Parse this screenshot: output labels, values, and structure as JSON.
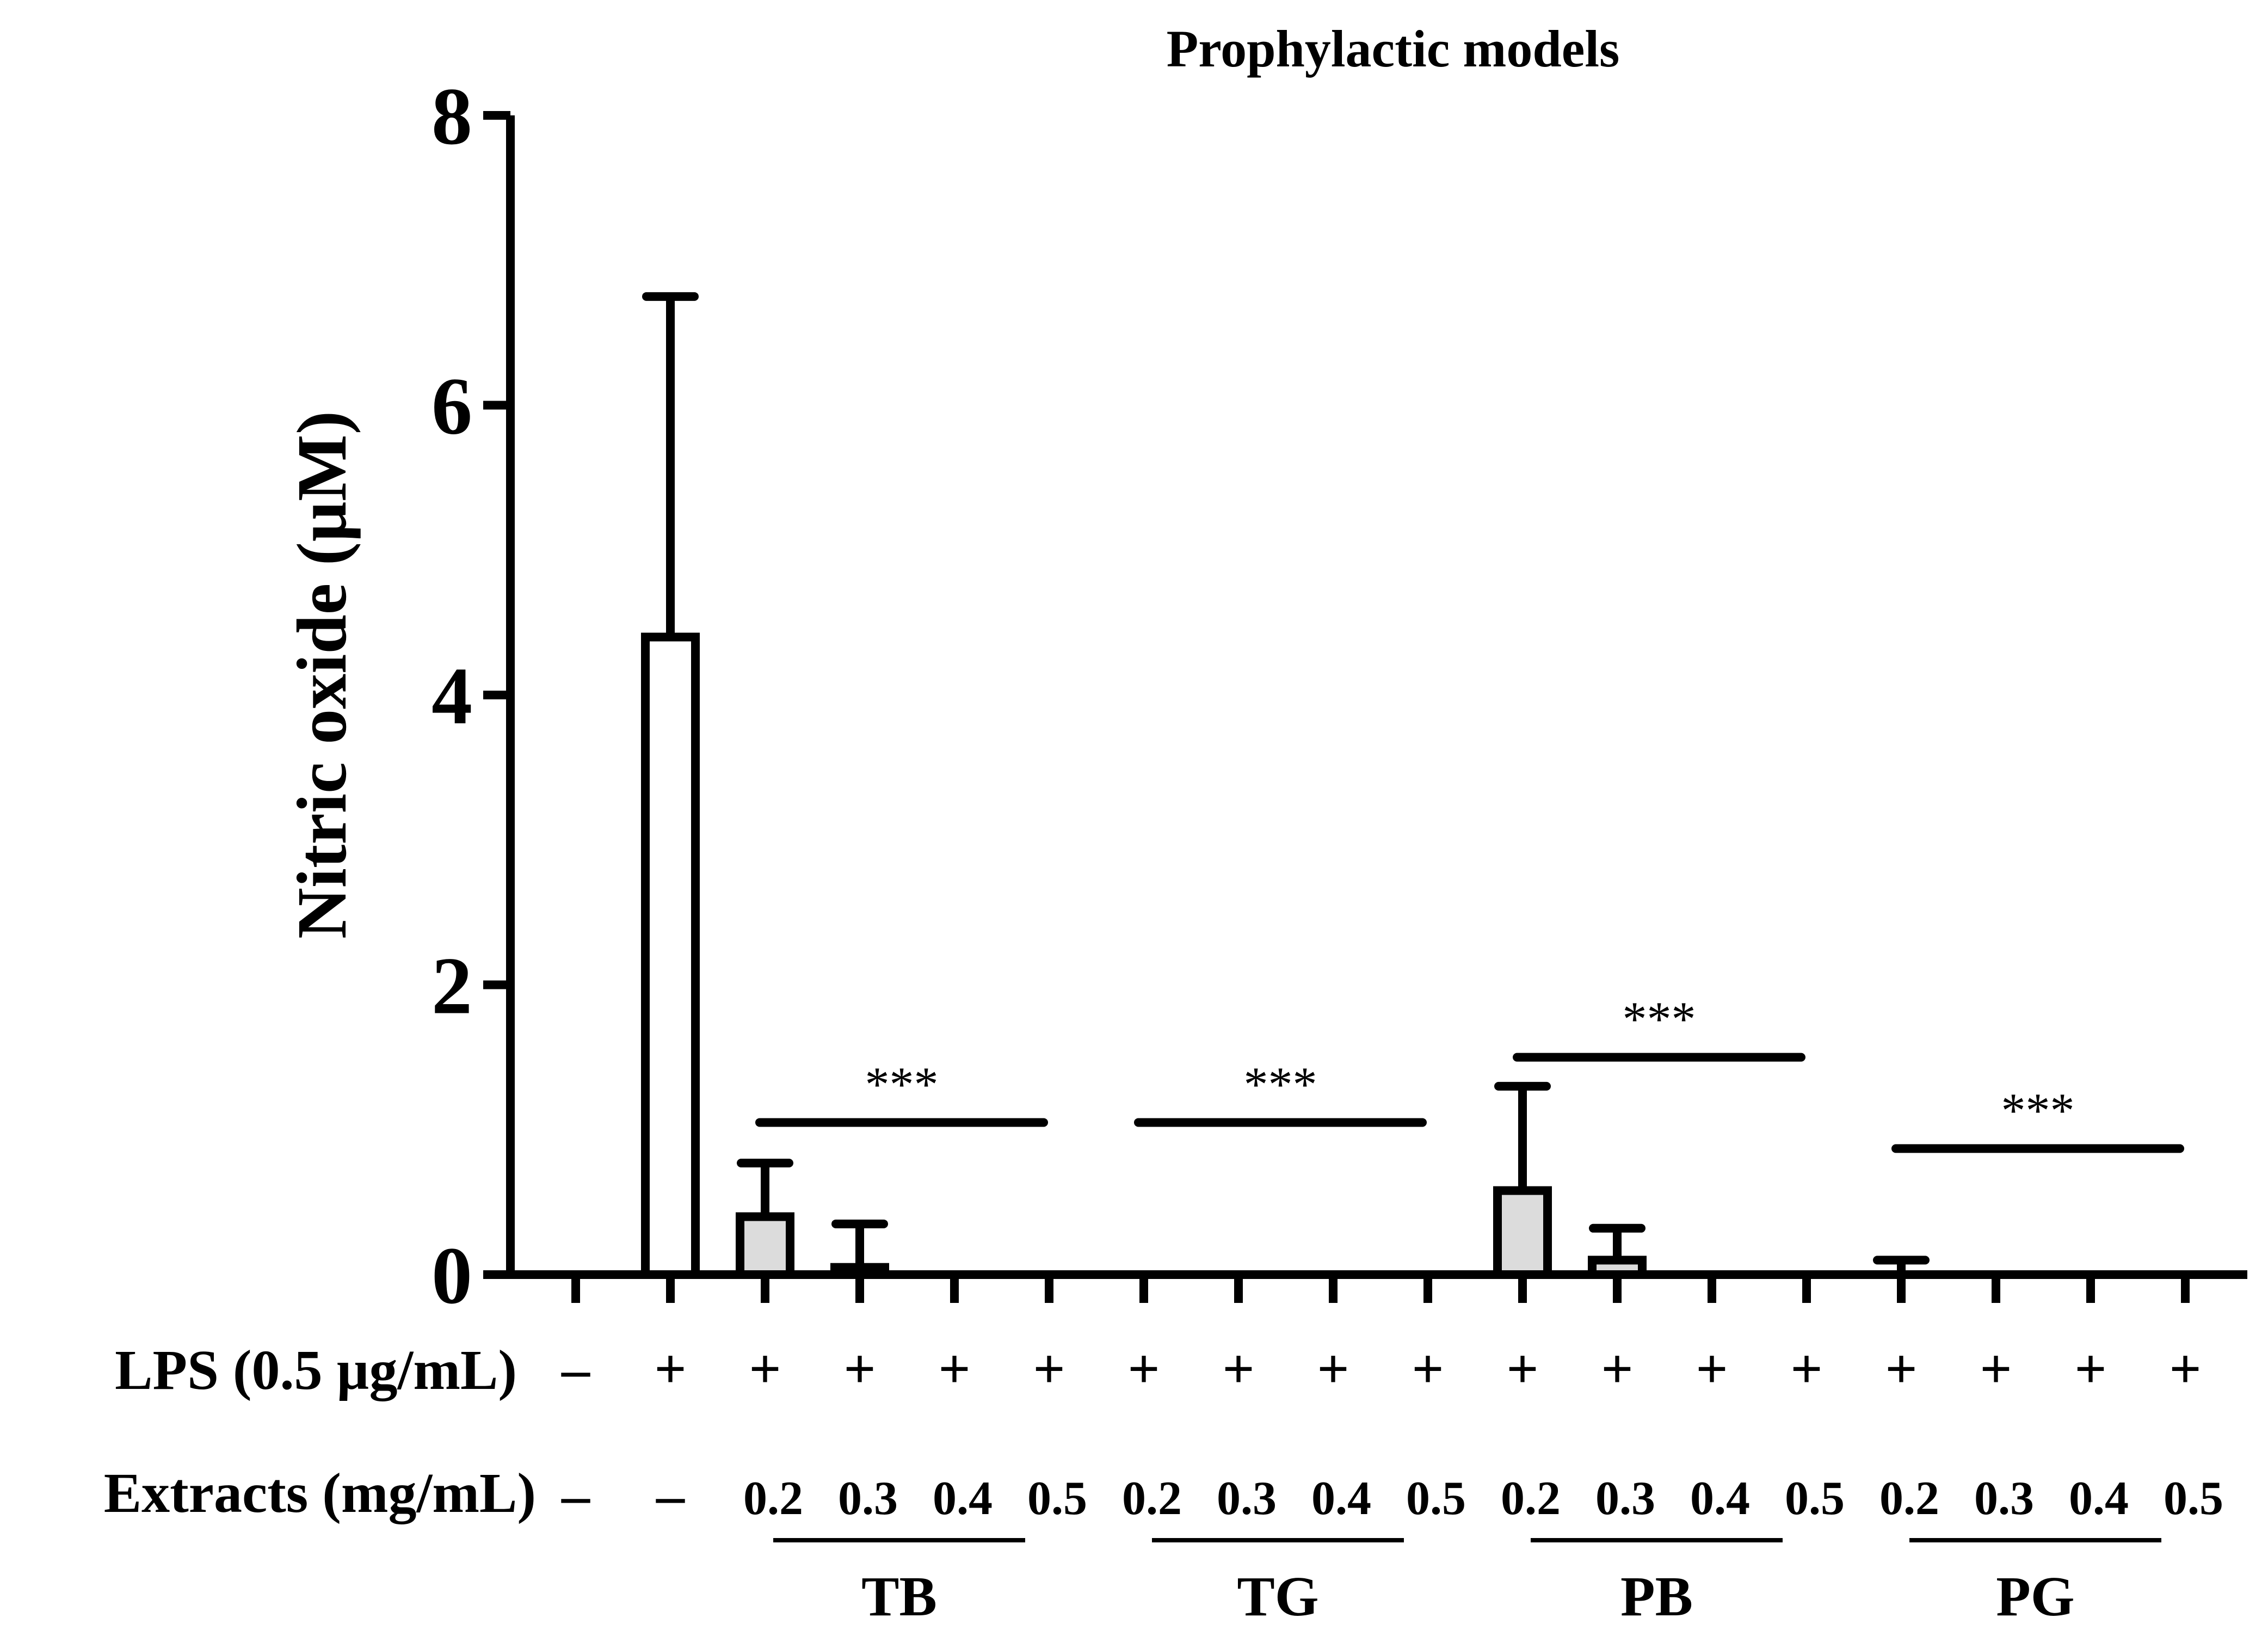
{
  "chart_data": {
    "type": "bar",
    "title": "Prophylactic models",
    "xlabel": "",
    "ylabel": "Nitric oxide (µM)",
    "ylim": [
      0,
      8
    ],
    "yticks": [
      "0",
      "2",
      "4",
      "6",
      "8"
    ],
    "row_labels": {
      "lps": "LPS (0.5 µg/mL)",
      "extracts": "Extracts (mg/mL)"
    },
    "lps_signs": [
      "–",
      "+",
      "+",
      "+",
      "+",
      "+",
      "+",
      "+",
      "+",
      "+",
      "+",
      "+",
      "+",
      "+",
      "+",
      "+",
      "+",
      "+"
    ],
    "extract_labels": [
      "–",
      "–",
      "0.2",
      "0.3",
      "0.4",
      "0.5",
      "0.2",
      "0.3",
      "0.4",
      "0.5",
      "0.2",
      "0.3",
      "0.4",
      "0.5",
      "0.2",
      "0.3",
      "0.4",
      "0.5"
    ],
    "groups": [
      {
        "name": "TB",
        "first": 2,
        "last": 5
      },
      {
        "name": "TG",
        "first": 6,
        "last": 9
      },
      {
        "name": "PB",
        "first": 10,
        "last": 13
      },
      {
        "name": "PG",
        "first": 14,
        "last": 17
      }
    ],
    "series": [
      {
        "name": "Nitric oxide",
        "values": [
          0,
          4.4,
          0.4,
          0.05,
          0,
          0,
          0,
          0,
          0,
          0,
          0.58,
          0.1,
          0,
          0,
          0,
          0,
          0,
          0
        ],
        "errors": [
          0,
          2.35,
          0.37,
          0.3,
          0,
          0,
          0,
          0,
          0,
          0,
          0.72,
          0.22,
          0,
          0,
          0,
          0,
          0,
          0.0
        ],
        "fills": [
          "#ffffff",
          "#ffffff",
          "#dcdcdc",
          "#dcdcdc",
          "#dcdcdc",
          "#dcdcdc",
          "#dcdcdc",
          "#dcdcdc",
          "#dcdcdc",
          "#dcdcdc",
          "#dcdcdc",
          "#dcdcdc",
          "#dcdcdc",
          "#dcdcdc",
          "#dcdcdc",
          "#dcdcdc",
          "#dcdcdc",
          "#dcdcdc"
        ]
      }
    ],
    "extra_error_caps": [
      {
        "index": 14,
        "value": 0.1
      }
    ],
    "significance": [
      {
        "label": "***",
        "first": 2,
        "last": 5,
        "y": 1.05
      },
      {
        "label": "***",
        "first": 6,
        "last": 9,
        "y": 1.05
      },
      {
        "label": "***",
        "first": 10,
        "last": 13,
        "y": 1.5
      },
      {
        "label": "***",
        "first": 14,
        "last": 17,
        "y": 0.87
      }
    ]
  }
}
